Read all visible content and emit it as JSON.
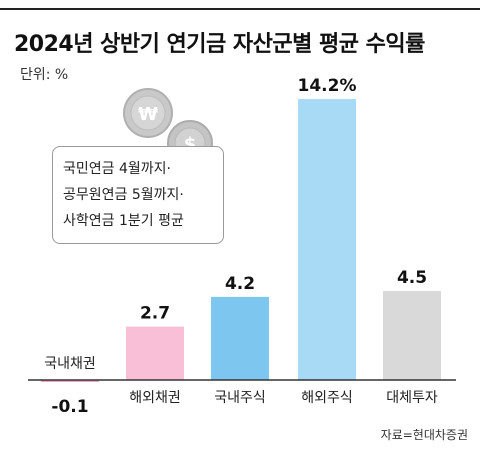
{
  "header": {
    "title": "2024년 상반기 연기금 자산군별 평균 수익률",
    "unit": "단위: %"
  },
  "note": {
    "lines": [
      "국민연금 4월까지·",
      "공무원연금 5월까지·",
      "사학연금 1분기 평균"
    ]
  },
  "coins": {
    "won_symbol": "₩",
    "dollar_symbol": "$"
  },
  "source": "자료=현대차증권",
  "chart_data": {
    "type": "bar",
    "title": "2024년 상반기 연기금 자산군별 평균 수익률",
    "ylabel": "",
    "xlabel": "",
    "unit": "%",
    "categories": [
      "국내채권",
      "해외채권",
      "국내주식",
      "해외주식",
      "대체투자"
    ],
    "values": [
      -0.1,
      2.7,
      4.2,
      14.2,
      4.5
    ],
    "value_labels": [
      "-0.1",
      "2.7",
      "4.2",
      "14.2%",
      "4.5"
    ],
    "colors": [
      "#f4a3c3",
      "#f9bfd6",
      "#7cc6f0",
      "#a8daf5",
      "#d9d9d9"
    ],
    "ylim": [
      -0.5,
      15
    ],
    "grid": false,
    "legend": "none"
  }
}
